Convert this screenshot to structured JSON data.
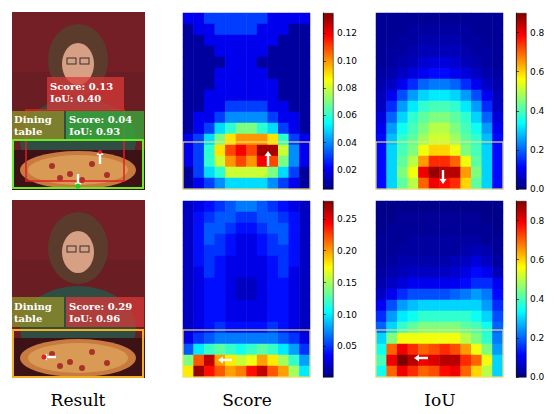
{
  "column_labels": [
    "Result",
    "Score",
    "IoU"
  ],
  "result_panels": [
    {
      "detections": [
        {
          "label": [
            "Score: 0.13",
            "IoU: 0.40"
          ]
        },
        {
          "class": [
            "Dining",
            "table"
          ],
          "label": [
            "Score: 0.04",
            "IoU: 0.93"
          ]
        }
      ]
    },
    {
      "detections": [
        {
          "class": [
            "Dining",
            "table"
          ],
          "label": [
            "Score: 0.29",
            "IoU: 0.96"
          ]
        }
      ]
    }
  ],
  "chart_data": [
    {
      "type": "heatmap",
      "tick_labels": false,
      "colorbar": {
        "range": [
          0.006,
          0.135
        ],
        "ticks": [
          0.02,
          0.04,
          0.06,
          0.08,
          {
            "value": 0.1,
            "label": "0.10"
          },
          0.12
        ]
      },
      "cells": [
        [
          0.02,
          0.02,
          0.03,
          0.03,
          0.03,
          0.03,
          0.03,
          0.03,
          0.02,
          0.02,
          0.02,
          0.02
        ],
        [
          0.01,
          0.02,
          0.02,
          0.03,
          0.03,
          0.03,
          0.03,
          0.02,
          0.02,
          0.02,
          0.01,
          0.01
        ],
        [
          0.01,
          0.01,
          0.02,
          0.02,
          0.02,
          0.02,
          0.02,
          0.02,
          0.02,
          0.01,
          0.01,
          0.01
        ],
        [
          0.01,
          0.01,
          0.01,
          0.02,
          0.02,
          0.02,
          0.02,
          0.02,
          0.01,
          0.01,
          0.01,
          0.01
        ],
        [
          0.01,
          0.01,
          0.01,
          0.01,
          0.02,
          0.02,
          0.02,
          0.01,
          0.01,
          0.01,
          0.01,
          0.01
        ],
        [
          0.01,
          0.01,
          0.01,
          0.02,
          0.02,
          0.02,
          0.02,
          0.02,
          0.01,
          0.01,
          0.01,
          0.01
        ],
        [
          0.01,
          0.01,
          0.01,
          0.02,
          0.02,
          0.02,
          0.02,
          0.02,
          0.02,
          0.01,
          0.01,
          0.01
        ],
        [
          0.01,
          0.01,
          0.02,
          0.02,
          0.02,
          0.02,
          0.02,
          0.02,
          0.02,
          0.01,
          0.01,
          0.01
        ],
        [
          0.01,
          0.01,
          0.02,
          0.02,
          0.03,
          0.03,
          0.03,
          0.03,
          0.02,
          0.02,
          0.01,
          0.01
        ],
        [
          0.01,
          0.02,
          0.02,
          0.03,
          0.04,
          0.04,
          0.04,
          0.04,
          0.03,
          0.02,
          0.02,
          0.01
        ],
        [
          0.01,
          0.02,
          0.03,
          0.05,
          0.06,
          0.07,
          0.07,
          0.06,
          0.05,
          0.03,
          0.02,
          0.01
        ],
        [
          0.02,
          0.03,
          0.05,
          0.07,
          0.09,
          0.1,
          0.1,
          0.1,
          0.09,
          0.06,
          0.03,
          0.02
        ],
        [
          0.02,
          0.03,
          0.06,
          0.09,
          0.11,
          0.12,
          0.11,
          0.13,
          0.13,
          0.08,
          0.04,
          0.02
        ],
        [
          0.02,
          0.03,
          0.06,
          0.08,
          0.1,
          0.11,
          0.1,
          0.12,
          0.11,
          0.07,
          0.04,
          0.02
        ],
        [
          0.01,
          0.03,
          0.05,
          0.06,
          0.08,
          0.08,
          0.08,
          0.08,
          0.07,
          0.05,
          0.03,
          0.01
        ],
        [
          0.01,
          0.02,
          0.03,
          0.04,
          0.05,
          0.05,
          0.05,
          0.05,
          0.04,
          0.03,
          0.02,
          0.01
        ]
      ]
    },
    {
      "type": "heatmap",
      "tick_labels": false,
      "colorbar": {
        "range": [
          0,
          0.9
        ],
        "ticks": [
          {
            "value": 0,
            "label": "0.0"
          },
          0.2,
          0.4,
          0.6,
          0.8
        ]
      },
      "cells": [
        [
          0.02,
          0.02,
          0.02,
          0.02,
          0.02,
          0.02,
          0.02,
          0.02,
          0.02,
          0.02,
          0.02,
          0.02
        ],
        [
          0.02,
          0.02,
          0.02,
          0.03,
          0.03,
          0.03,
          0.03,
          0.03,
          0.03,
          0.02,
          0.02,
          0.02
        ],
        [
          0.02,
          0.02,
          0.03,
          0.03,
          0.04,
          0.04,
          0.04,
          0.04,
          0.03,
          0.03,
          0.02,
          0.02
        ],
        [
          0.02,
          0.03,
          0.03,
          0.04,
          0.05,
          0.05,
          0.05,
          0.05,
          0.04,
          0.03,
          0.03,
          0.02
        ],
        [
          0.02,
          0.03,
          0.04,
          0.05,
          0.07,
          0.08,
          0.08,
          0.07,
          0.05,
          0.04,
          0.03,
          0.02
        ],
        [
          0.03,
          0.04,
          0.06,
          0.08,
          0.1,
          0.12,
          0.12,
          0.1,
          0.08,
          0.06,
          0.04,
          0.03
        ],
        [
          0.04,
          0.06,
          0.1,
          0.15,
          0.2,
          0.22,
          0.22,
          0.2,
          0.15,
          0.1,
          0.06,
          0.04
        ],
        [
          0.05,
          0.1,
          0.18,
          0.25,
          0.3,
          0.32,
          0.32,
          0.3,
          0.25,
          0.18,
          0.1,
          0.05
        ],
        [
          0.06,
          0.15,
          0.25,
          0.32,
          0.38,
          0.4,
          0.4,
          0.38,
          0.32,
          0.25,
          0.15,
          0.06
        ],
        [
          0.08,
          0.2,
          0.3,
          0.38,
          0.42,
          0.45,
          0.45,
          0.42,
          0.38,
          0.3,
          0.2,
          0.08
        ],
        [
          0.1,
          0.25,
          0.35,
          0.4,
          0.45,
          0.5,
          0.5,
          0.45,
          0.4,
          0.35,
          0.25,
          0.1
        ],
        [
          0.12,
          0.28,
          0.38,
          0.42,
          0.48,
          0.52,
          0.52,
          0.48,
          0.42,
          0.38,
          0.28,
          0.12
        ],
        [
          0.12,
          0.3,
          0.4,
          0.45,
          0.55,
          0.6,
          0.6,
          0.55,
          0.45,
          0.4,
          0.3,
          0.12
        ],
        [
          0.12,
          0.3,
          0.42,
          0.5,
          0.65,
          0.75,
          0.75,
          0.7,
          0.55,
          0.42,
          0.3,
          0.12
        ],
        [
          0.12,
          0.3,
          0.45,
          0.55,
          0.8,
          0.88,
          0.85,
          0.85,
          0.65,
          0.45,
          0.3,
          0.12
        ],
        [
          0.12,
          0.3,
          0.42,
          0.5,
          0.7,
          0.8,
          0.78,
          0.75,
          0.6,
          0.42,
          0.3,
          0.12
        ]
      ]
    },
    {
      "type": "heatmap",
      "tick_labels": false,
      "colorbar": {
        "range": [
          0.002,
          0.278
        ],
        "ticks": [
          0.05,
          {
            "value": 0.1,
            "label": "0.10"
          },
          0.15,
          {
            "value": 0.2,
            "label": "0.20"
          },
          0.25
        ]
      },
      "cells": [
        [
          0.02,
          0.03,
          0.04,
          0.05,
          0.06,
          0.07,
          0.07,
          0.06,
          0.05,
          0.04,
          0.03,
          0.02
        ],
        [
          0.02,
          0.04,
          0.05,
          0.06,
          0.06,
          0.05,
          0.05,
          0.06,
          0.06,
          0.05,
          0.04,
          0.02
        ],
        [
          0.02,
          0.04,
          0.06,
          0.06,
          0.05,
          0.04,
          0.04,
          0.05,
          0.06,
          0.06,
          0.04,
          0.02
        ],
        [
          0.02,
          0.04,
          0.06,
          0.05,
          0.04,
          0.03,
          0.03,
          0.04,
          0.05,
          0.06,
          0.04,
          0.02
        ],
        [
          0.02,
          0.04,
          0.05,
          0.05,
          0.04,
          0.03,
          0.03,
          0.04,
          0.05,
          0.05,
          0.04,
          0.02
        ],
        [
          0.02,
          0.04,
          0.05,
          0.04,
          0.03,
          0.03,
          0.03,
          0.03,
          0.04,
          0.05,
          0.04,
          0.02
        ],
        [
          0.02,
          0.03,
          0.05,
          0.04,
          0.03,
          0.03,
          0.03,
          0.03,
          0.04,
          0.05,
          0.03,
          0.02
        ],
        [
          0.02,
          0.03,
          0.04,
          0.04,
          0.03,
          0.02,
          0.02,
          0.03,
          0.04,
          0.04,
          0.03,
          0.02
        ],
        [
          0.02,
          0.03,
          0.04,
          0.04,
          0.03,
          0.02,
          0.02,
          0.03,
          0.04,
          0.04,
          0.03,
          0.02
        ],
        [
          0.02,
          0.03,
          0.04,
          0.04,
          0.03,
          0.03,
          0.03,
          0.03,
          0.04,
          0.04,
          0.03,
          0.02
        ],
        [
          0.02,
          0.03,
          0.04,
          0.04,
          0.03,
          0.03,
          0.03,
          0.03,
          0.04,
          0.04,
          0.03,
          0.02
        ],
        [
          0.02,
          0.03,
          0.04,
          0.05,
          0.04,
          0.04,
          0.04,
          0.04,
          0.05,
          0.04,
          0.03,
          0.02
        ],
        [
          0.03,
          0.05,
          0.06,
          0.07,
          0.07,
          0.07,
          0.07,
          0.07,
          0.07,
          0.06,
          0.05,
          0.03
        ],
        [
          0.06,
          0.1,
          0.12,
          0.13,
          0.12,
          0.11,
          0.12,
          0.13,
          0.12,
          0.1,
          0.08,
          0.05
        ],
        [
          0.14,
          0.22,
          0.26,
          0.2,
          0.18,
          0.16,
          0.17,
          0.2,
          0.18,
          0.15,
          0.12,
          0.08
        ],
        [
          0.18,
          0.27,
          0.24,
          0.22,
          0.2,
          0.21,
          0.24,
          0.26,
          0.22,
          0.2,
          0.15,
          0.1
        ]
      ]
    },
    {
      "type": "heatmap",
      "tick_labels": false,
      "colorbar": {
        "range": [
          0,
          0.9
        ],
        "ticks": [
          {
            "value": 0,
            "label": "0.0"
          },
          0.2,
          0.4,
          0.6,
          0.8
        ]
      },
      "cells": [
        [
          0.01,
          0.01,
          0.01,
          0.01,
          0.01,
          0.01,
          0.01,
          0.01,
          0.01,
          0.01,
          0.01,
          0.01
        ],
        [
          0.01,
          0.01,
          0.02,
          0.02,
          0.02,
          0.02,
          0.02,
          0.02,
          0.02,
          0.02,
          0.01,
          0.01
        ],
        [
          0.01,
          0.02,
          0.02,
          0.02,
          0.02,
          0.02,
          0.02,
          0.02,
          0.02,
          0.02,
          0.02,
          0.01
        ],
        [
          0.02,
          0.02,
          0.02,
          0.03,
          0.03,
          0.03,
          0.03,
          0.03,
          0.03,
          0.03,
          0.02,
          0.02
        ],
        [
          0.02,
          0.02,
          0.03,
          0.03,
          0.03,
          0.03,
          0.03,
          0.03,
          0.04,
          0.05,
          0.04,
          0.02
        ],
        [
          0.02,
          0.03,
          0.04,
          0.04,
          0.04,
          0.04,
          0.04,
          0.05,
          0.06,
          0.08,
          0.06,
          0.03
        ],
        [
          0.03,
          0.04,
          0.05,
          0.06,
          0.06,
          0.06,
          0.06,
          0.07,
          0.09,
          0.12,
          0.1,
          0.05
        ],
        [
          0.04,
          0.06,
          0.08,
          0.1,
          0.1,
          0.1,
          0.1,
          0.1,
          0.12,
          0.15,
          0.15,
          0.1
        ],
        [
          0.06,
          0.1,
          0.15,
          0.18,
          0.18,
          0.18,
          0.18,
          0.2,
          0.22,
          0.25,
          0.22,
          0.12
        ],
        [
          0.1,
          0.18,
          0.25,
          0.28,
          0.3,
          0.3,
          0.3,
          0.3,
          0.3,
          0.3,
          0.25,
          0.15
        ],
        [
          0.15,
          0.25,
          0.32,
          0.35,
          0.38,
          0.38,
          0.38,
          0.38,
          0.38,
          0.35,
          0.3,
          0.18
        ],
        [
          0.2,
          0.3,
          0.38,
          0.42,
          0.45,
          0.45,
          0.45,
          0.45,
          0.42,
          0.4,
          0.35,
          0.2
        ],
        [
          0.3,
          0.45,
          0.55,
          0.55,
          0.55,
          0.55,
          0.55,
          0.55,
          0.5,
          0.45,
          0.38,
          0.22
        ],
        [
          0.35,
          0.7,
          0.8,
          0.75,
          0.7,
          0.72,
          0.75,
          0.72,
          0.65,
          0.55,
          0.45,
          0.25
        ],
        [
          0.4,
          0.8,
          0.9,
          0.85,
          0.8,
          0.82,
          0.85,
          0.85,
          0.75,
          0.7,
          0.55,
          0.3
        ],
        [
          0.35,
          0.7,
          0.8,
          0.75,
          0.7,
          0.72,
          0.78,
          0.8,
          0.7,
          0.6,
          0.5,
          0.3
        ]
      ]
    }
  ]
}
